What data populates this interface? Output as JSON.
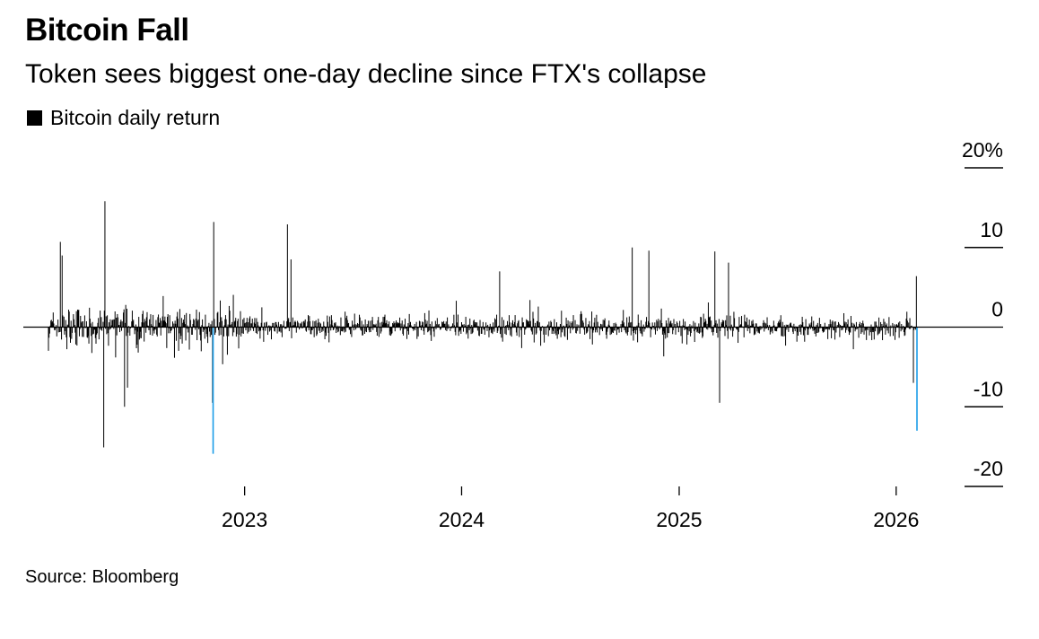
{
  "chart_data": {
    "type": "bar",
    "title": "Bitcoin Fall",
    "subtitle": "Token sees biggest one-day decline since FTX's collapse",
    "legend": [
      {
        "label": "Bitcoin daily return",
        "color": "#000000"
      }
    ],
    "xlabel": "",
    "ylabel": "",
    "x_range": [
      "2022-02-05",
      "2026-02-05"
    ],
    "ylim": [
      -20,
      20
    ],
    "y_ticks": [
      {
        "value": 20,
        "label": "20%"
      },
      {
        "value": 10,
        "label": "10"
      },
      {
        "value": 0,
        "label": "0"
      },
      {
        "value": -10,
        "label": "-10"
      },
      {
        "value": -20,
        "label": "-20"
      }
    ],
    "x_ticks": [
      {
        "value": "2023-01-01",
        "label": "2023"
      },
      {
        "value": "2024-01-01",
        "label": "2024"
      },
      {
        "value": "2025-01-01",
        "label": "2025"
      },
      {
        "value": "2026-01-01",
        "label": "2026"
      }
    ],
    "grid": false,
    "legend_position": "top-left",
    "series": [
      {
        "name": "Bitcoin daily return",
        "color": "#000000",
        "highlight_color": "#1a9de8",
        "notable_points": [
          {
            "x": "2022-02-25",
            "y": 10.7
          },
          {
            "x": "2022-02-28",
            "y": 9.0
          },
          {
            "x": "2022-05-09",
            "y": -15.1
          },
          {
            "x": "2022-05-11",
            "y": 15.8
          },
          {
            "x": "2022-06-13",
            "y": -10.0
          },
          {
            "x": "2022-06-18",
            "y": -7.6
          },
          {
            "x": "2022-11-08",
            "y": -9.5
          },
          {
            "x": "2022-11-09",
            "y": -15.9,
            "highlight": true
          },
          {
            "x": "2022-11-10",
            "y": 13.2
          },
          {
            "x": "2023-03-14",
            "y": 12.9
          },
          {
            "x": "2023-03-20",
            "y": 8.5
          },
          {
            "x": "2024-03-05",
            "y": 7.0
          },
          {
            "x": "2024-10-14",
            "y": 10.0
          },
          {
            "x": "2024-11-11",
            "y": 9.6
          },
          {
            "x": "2025-03-02",
            "y": 9.5
          },
          {
            "x": "2025-03-10",
            "y": -9.5
          },
          {
            "x": "2025-03-25",
            "y": 8.1
          },
          {
            "x": "2026-01-30",
            "y": -7.0
          },
          {
            "x": "2026-02-04",
            "y": 6.4
          },
          {
            "x": "2026-02-05",
            "y": -13.0,
            "highlight": true
          }
        ]
      }
    ]
  },
  "footer": {
    "source": "Source: Bloomberg"
  }
}
